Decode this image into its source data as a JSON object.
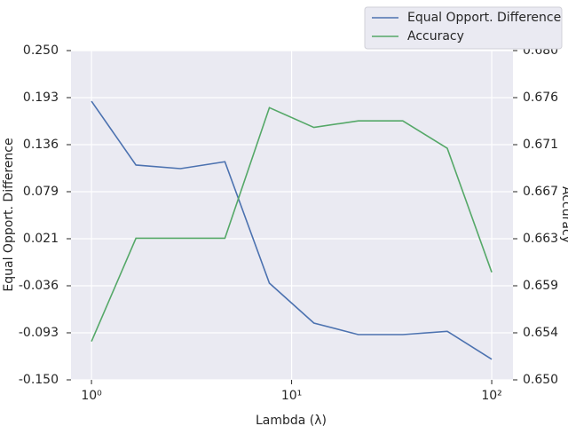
{
  "chart_data": {
    "type": "line",
    "x": [
      1,
      1.668,
      2.783,
      4.642,
      7.743,
      12.92,
      21.54,
      35.94,
      59.95,
      100
    ],
    "xlim": [
      0.79,
      127.7
    ],
    "xlog": true,
    "xticks": [
      {
        "value": 1,
        "label": "10⁰"
      },
      {
        "value": 10,
        "label": "10¹"
      },
      {
        "value": 100,
        "label": "10²"
      }
    ],
    "xlabel": "Lambda (λ)",
    "ylabel": "Equal Opport. Difference",
    "y2label": "Accuracy",
    "ylim": [
      -0.15,
      0.25
    ],
    "yticks": [
      {
        "value": -0.15,
        "label": "-0.150"
      },
      {
        "value": -0.092857,
        "label": "-0.093"
      },
      {
        "value": -0.035714,
        "label": "-0.036"
      },
      {
        "value": 0.021429,
        "label": "0.021"
      },
      {
        "value": 0.078571,
        "label": "0.079"
      },
      {
        "value": 0.135714,
        "label": "0.136"
      },
      {
        "value": 0.192857,
        "label": "0.193"
      },
      {
        "value": 0.25,
        "label": "0.250"
      }
    ],
    "y2lim": [
      0.65,
      0.68
    ],
    "y2ticks": [
      {
        "value": 0.65,
        "label": "0.650"
      },
      {
        "value": 0.654286,
        "label": "0.654"
      },
      {
        "value": 0.658571,
        "label": "0.659"
      },
      {
        "value": 0.662857,
        "label": "0.663"
      },
      {
        "value": 0.667143,
        "label": "0.667"
      },
      {
        "value": 0.671429,
        "label": "0.671"
      },
      {
        "value": 0.675714,
        "label": "0.676"
      },
      {
        "value": 0.68,
        "label": "0.680"
      }
    ],
    "grid": true,
    "legend": "top right",
    "series": [
      {
        "name": "Equal Opport. Difference",
        "color": "#4c72b0",
        "axis": "y",
        "values": [
          0.1885,
          0.111,
          0.1066,
          0.115,
          -0.0325,
          -0.081,
          -0.095,
          -0.095,
          -0.091,
          -0.125
        ]
      },
      {
        "name": "Accuracy",
        "color": "#55a868",
        "axis": "y2",
        "values": [
          0.6535,
          0.6629,
          0.6629,
          0.6629,
          0.6748,
          0.673,
          0.6736,
          0.6736,
          0.6711,
          0.6598
        ]
      }
    ]
  }
}
